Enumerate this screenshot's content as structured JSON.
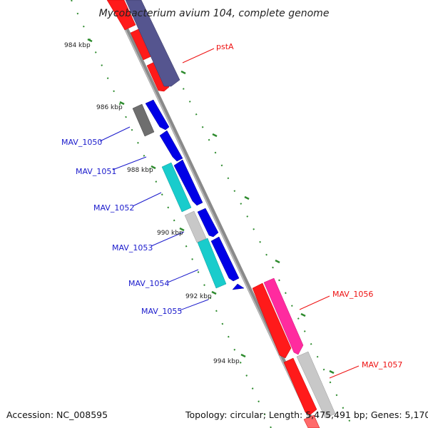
{
  "title": "Mycobacterium avium 104, complete genome",
  "footer": {
    "accession": "Accession: NC_008595",
    "summary": "Topology: circular; Length: 5,475,491 bp; Genes: 5,170"
  },
  "ticks": [
    "984 kbp",
    "986 kbp",
    "988 kbp",
    "990 kbp",
    "992 kbp",
    "994 kbp"
  ],
  "gene_labels": {
    "pstA": "pstA",
    "mav1050": "MAV_1050",
    "mav1051": "MAV_1051",
    "mav1052": "MAV_1052",
    "mav1053": "MAV_1053",
    "mav1054": "MAV_1054",
    "mav1055": "MAV_1055",
    "mav1056": "MAV_1056",
    "mav1057": "MAV_1057"
  },
  "colors": {
    "backbone": "#8a8a8a",
    "tick": "#2e8b2e",
    "red": "#ff1a1a",
    "purple": "#55558f",
    "blue": "#0000e6",
    "cyan": "#19cccc",
    "magenta": "#ff2b9f",
    "lightgray": "#c8c8c8",
    "darkgray": "#6e6e6e"
  }
}
